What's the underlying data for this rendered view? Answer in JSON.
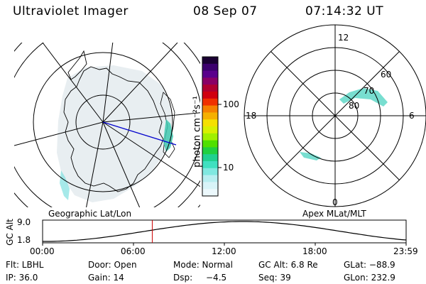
{
  "header": {
    "title": "Ultraviolet Imager",
    "date": "08 Sep 07",
    "time": "07:14:32 UT"
  },
  "colorbar": {
    "unit_label": "photon cm⁻²s⁻¹",
    "tick_high": "100",
    "tick_low": "10",
    "colors": [
      "#1a0033",
      "#3c006e",
      "#5a008c",
      "#8a0066",
      "#b00030",
      "#d00010",
      "#f03000",
      "#f58000",
      "#f5b000",
      "#f5e000",
      "#d8f000",
      "#a0f000",
      "#50e000",
      "#20d040",
      "#20d090",
      "#40e0c0",
      "#80e8e0",
      "#b8eef0",
      "#d8f4f8",
      "#ecf8fc"
    ]
  },
  "polar_plot": {
    "label_top": "12",
    "label_bottom": "0",
    "label_left": "18",
    "label_right": "6",
    "lat_60": "60",
    "lat_70": "70",
    "lat_80": "80"
  },
  "footer_labels": {
    "geo": "Geographic Lat/Lon",
    "apex": "Apex MLat/MLT"
  },
  "altitude_chart": {
    "ylabel": "GC Alt",
    "y_top": "9.0",
    "y_bottom": "1.8",
    "x_ticks": [
      "00:00",
      "06:00",
      "12:00",
      "18:00",
      "23:59"
    ],
    "current_time_hours": 7.24
  },
  "status": {
    "flt": "Flt: LBHL",
    "door": "Door: Open",
    "mode": "Mode: Normal",
    "gc_alt": "GC Alt: 6.8 Re",
    "glat": "GLat: −88.9",
    "ip": "IP: 36.0",
    "gain": "Gain: 14",
    "dsp_label": "Dsp:",
    "dsp_value": "−4.5",
    "seq": "Seq: 39",
    "glon": "GLon: 232.9"
  }
}
